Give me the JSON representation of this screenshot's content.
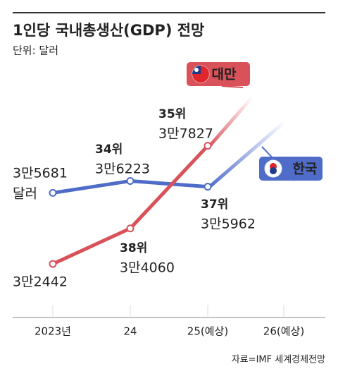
{
  "chart_data": {
    "type": "line",
    "title": "1인당 국내총생산(GDP) 전망",
    "subtitle": "단위: 달러",
    "source": "자료=IMF 세계경제전망",
    "unit_label": "달러",
    "categories": [
      "2023년",
      "24",
      "25(예상)",
      "26(예상)"
    ],
    "ylim": [
      30000,
      41000
    ],
    "series": [
      {
        "name": "한국",
        "color": "#4e6cc8",
        "values": [
          35681,
          36223,
          35962,
          null
        ],
        "value_labels": [
          "3만5681",
          "3만6223",
          "3만5962",
          null
        ],
        "rank_labels": [
          null,
          "34위",
          "37위",
          null
        ]
      },
      {
        "name": "대만",
        "color": "#d9525a",
        "values": [
          32442,
          34060,
          37827,
          null
        ],
        "value_labels": [
          "3만2442",
          "3만4060",
          "3만7827",
          null
        ],
        "rank_labels": [
          null,
          "38위",
          "35위",
          null
        ]
      }
    ]
  }
}
